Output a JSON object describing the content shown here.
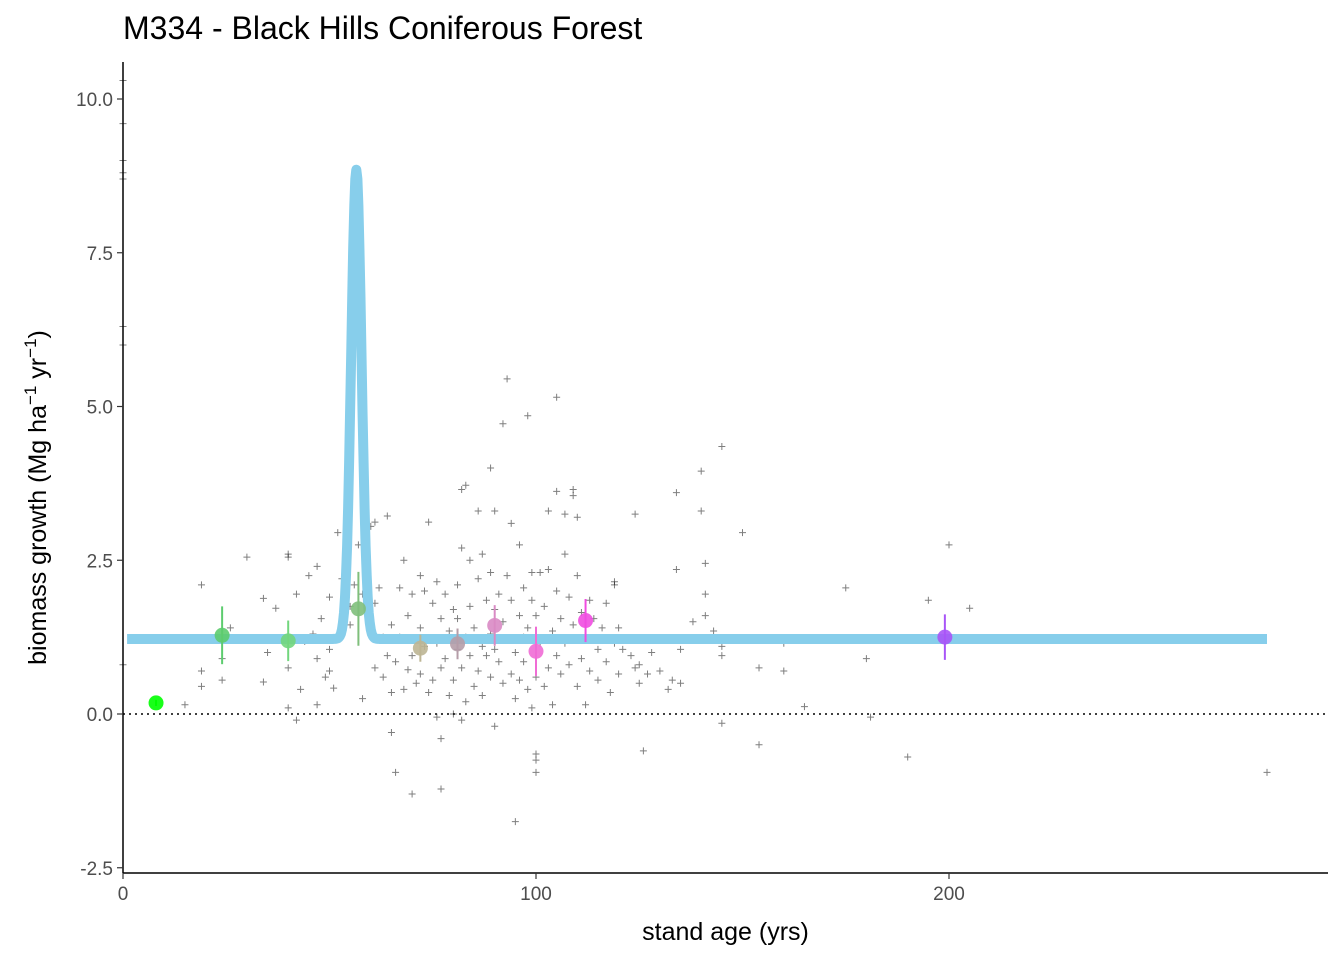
{
  "chart_data": {
    "type": "scatter",
    "title": "M334 - Black Hills Coniferous Forest",
    "xlabel": "stand age (yrs)",
    "ylabel": {
      "main": "biomass growth (Mg ha",
      "sup1": "−1",
      "mid": " yr",
      "sup2": "−1",
      "end": ")"
    },
    "xlim": [
      0,
      292
    ],
    "ylim": [
      -2.6,
      10.6
    ],
    "x_ticks": [
      0,
      100,
      200
    ],
    "x_tick_labels": [
      "0",
      "100",
      "200"
    ],
    "y_ticks": [
      -2.5,
      0.0,
      2.5,
      5.0,
      7.5,
      10.0
    ],
    "y_tick_labels": [
      "-2.5",
      "0.0",
      "2.5",
      "5.0",
      "7.5",
      "10.0"
    ],
    "reference_line": {
      "y": 0,
      "style": "dotted",
      "color": "#000000"
    },
    "grid": false,
    "fitted_curve": {
      "color": "#87CEEB",
      "baseline": 1.22,
      "peak_x": 56.5,
      "peak_y": 8.85,
      "x_range": [
        1,
        277
      ]
    },
    "group_means": [
      {
        "x": 8,
        "y": 0.18,
        "err": 0.05,
        "color": "#00FF00"
      },
      {
        "x": 24,
        "y": 1.28,
        "err": 0.47,
        "color": "#5DCC6E"
      },
      {
        "x": 40,
        "y": 1.19,
        "err": 0.33,
        "color": "#72D67D"
      },
      {
        "x": 57,
        "y": 1.71,
        "err": 0.6,
        "color": "#7FBF7B"
      },
      {
        "x": 72,
        "y": 1.07,
        "err": 0.22,
        "color": "#BDB594"
      },
      {
        "x": 81,
        "y": 1.14,
        "err": 0.25,
        "color": "#B59DA8"
      },
      {
        "x": 90,
        "y": 1.44,
        "err": 0.33,
        "color": "#D98AC4"
      },
      {
        "x": 100,
        "y": 1.02,
        "err": 0.4,
        "color": "#F06CD5"
      },
      {
        "x": 112,
        "y": 1.52,
        "err": 0.35,
        "color": "#F04CE0"
      },
      {
        "x": 199,
        "y": 1.25,
        "err": 0.37,
        "color": "#A855F7"
      }
    ],
    "observations": [
      [
        0,
        9.0
      ],
      [
        0,
        8.8
      ],
      [
        0,
        8.7
      ],
      [
        0,
        6.3
      ],
      [
        0,
        6.0
      ],
      [
        0,
        0.8
      ],
      [
        0,
        10.3
      ],
      [
        0,
        9.6
      ],
      [
        15,
        0.15
      ],
      [
        19,
        0.7
      ],
      [
        19,
        0.45
      ],
      [
        19,
        2.1
      ],
      [
        24,
        0.55
      ],
      [
        24,
        0.9
      ],
      [
        26,
        1.4
      ],
      [
        30,
        2.55
      ],
      [
        34,
        0.52
      ],
      [
        34,
        1.88
      ],
      [
        35,
        1.0
      ],
      [
        37,
        1.72
      ],
      [
        40,
        0.75
      ],
      [
        40,
        0.1
      ],
      [
        40,
        2.55
      ],
      [
        40,
        2.6
      ],
      [
        42,
        1.95
      ],
      [
        42,
        -0.1
      ],
      [
        43,
        0.4
      ],
      [
        44,
        1.18
      ],
      [
        45,
        2.25
      ],
      [
        46,
        1.3
      ],
      [
        47,
        0.9
      ],
      [
        47,
        2.4
      ],
      [
        47,
        0.15
      ],
      [
        48,
        1.55
      ],
      [
        49,
        0.6
      ],
      [
        50,
        1.05
      ],
      [
        50,
        1.9
      ],
      [
        50,
        0.7
      ],
      [
        51,
        0.42
      ],
      [
        52,
        2.95
      ],
      [
        53,
        2.2
      ],
      [
        53,
        1.38
      ],
      [
        54,
        2.35
      ],
      [
        55,
        1.75
      ],
      [
        55,
        1.45
      ],
      [
        56,
        2.1
      ],
      [
        57,
        2.75
      ],
      [
        58,
        0.25
      ],
      [
        58,
        1.95
      ],
      [
        59,
        2.2
      ],
      [
        60,
        3.05
      ],
      [
        61,
        0.75
      ],
      [
        61,
        3.12
      ],
      [
        61,
        1.8
      ],
      [
        62,
        2.05
      ],
      [
        63,
        0.6
      ],
      [
        63,
        1.25
      ],
      [
        64,
        0.95
      ],
      [
        64,
        3.22
      ],
      [
        65,
        1.45
      ],
      [
        65,
        0.35
      ],
      [
        65,
        -0.3
      ],
      [
        66,
        0.85
      ],
      [
        66,
        -0.95
      ],
      [
        67,
        1.25
      ],
      [
        67,
        2.05
      ],
      [
        68,
        2.5
      ],
      [
        68,
        0.4
      ],
      [
        69,
        1.6
      ],
      [
        69,
        0.72
      ],
      [
        70,
        -1.3
      ],
      [
        70,
        1.95
      ],
      [
        70,
        0.95
      ],
      [
        71,
        0.5
      ],
      [
        72,
        1.4
      ],
      [
        72,
        2.25
      ],
      [
        72,
        0.65
      ],
      [
        73,
        1.1
      ],
      [
        73,
        2.0
      ],
      [
        74,
        0.35
      ],
      [
        74,
        3.12
      ],
      [
        75,
        1.8
      ],
      [
        75,
        0.55
      ],
      [
        76,
        1.15
      ],
      [
        76,
        2.15
      ],
      [
        76,
        -0.05
      ],
      [
        77,
        0.75
      ],
      [
        77,
        -1.22
      ],
      [
        77,
        1.55
      ],
      [
        77,
        -0.4
      ],
      [
        78,
        0.9
      ],
      [
        78,
        1.95
      ],
      [
        79,
        0.3
      ],
      [
        79,
        1.35
      ],
      [
        80,
        1.7
      ],
      [
        80,
        0.55
      ],
      [
        80,
        0.0
      ],
      [
        81,
        1.05
      ],
      [
        81,
        1.55
      ],
      [
        81,
        2.1
      ],
      [
        82,
        3.65
      ],
      [
        82,
        2.7
      ],
      [
        82,
        0.75
      ],
      [
        82,
        -0.1
      ],
      [
        83,
        3.72
      ],
      [
        83,
        1.25
      ],
      [
        83,
        0.2
      ],
      [
        84,
        1.75
      ],
      [
        84,
        2.5
      ],
      [
        84,
        0.95
      ],
      [
        85,
        1.4
      ],
      [
        85,
        0.45
      ],
      [
        86,
        3.3
      ],
      [
        86,
        2.2
      ],
      [
        86,
        0.7
      ],
      [
        87,
        1.1
      ],
      [
        87,
        2.6
      ],
      [
        87,
        0.3
      ],
      [
        88,
        1.85
      ],
      [
        88,
        0.95
      ],
      [
        89,
        4.0
      ],
      [
        89,
        2.3
      ],
      [
        89,
        1.3
      ],
      [
        89,
        0.6
      ],
      [
        90,
        3.3
      ],
      [
        90,
        1.7
      ],
      [
        90,
        1.05
      ],
      [
        90,
        -0.2
      ],
      [
        91,
        1.95
      ],
      [
        91,
        0.85
      ],
      [
        92,
        4.72
      ],
      [
        92,
        1.5
      ],
      [
        92,
        0.5
      ],
      [
        93,
        5.45
      ],
      [
        93,
        2.25
      ],
      [
        93,
        1.2
      ],
      [
        94,
        0.65
      ],
      [
        94,
        1.85
      ],
      [
        94,
        3.1
      ],
      [
        95,
        -1.75
      ],
      [
        95,
        1.0
      ],
      [
        95,
        0.25
      ],
      [
        96,
        1.6
      ],
      [
        96,
        2.75
      ],
      [
        96,
        0.55
      ],
      [
        97,
        1.25
      ],
      [
        97,
        0.85
      ],
      [
        97,
        2.05
      ],
      [
        98,
        4.85
      ],
      [
        98,
        1.4
      ],
      [
        98,
        0.4
      ],
      [
        99,
        2.3
      ],
      [
        99,
        1.85
      ],
      [
        99,
        0.1
      ],
      [
        100,
        -0.65
      ],
      [
        100,
        -0.75
      ],
      [
        100,
        -0.95
      ],
      [
        100,
        1.6
      ],
      [
        100,
        0.6
      ],
      [
        101,
        2.3
      ],
      [
        101,
        1.15
      ],
      [
        102,
        1.75
      ],
      [
        102,
        0.45
      ],
      [
        103,
        2.35
      ],
      [
        103,
        3.3
      ],
      [
        103,
        0.75
      ],
      [
        104,
        1.35
      ],
      [
        104,
        0.15
      ],
      [
        105,
        5.15
      ],
      [
        105,
        3.62
      ],
      [
        105,
        2.0
      ],
      [
        105,
        0.95
      ],
      [
        106,
        1.55
      ],
      [
        106,
        0.65
      ],
      [
        107,
        2.6
      ],
      [
        107,
        1.15
      ],
      [
        107,
        3.25
      ],
      [
        108,
        0.8
      ],
      [
        108,
        1.9
      ],
      [
        109,
        3.55
      ],
      [
        109,
        3.65
      ],
      [
        109,
        1.45
      ],
      [
        110,
        0.45
      ],
      [
        110,
        2.25
      ],
      [
        110,
        3.2
      ],
      [
        111,
        1.65
      ],
      [
        111,
        0.9
      ],
      [
        112,
        1.25
      ],
      [
        112,
        0.15
      ],
      [
        113,
        1.85
      ],
      [
        113,
        0.7
      ],
      [
        114,
        1.55
      ],
      [
        115,
        1.05
      ],
      [
        115,
        0.55
      ],
      [
        116,
        1.4
      ],
      [
        117,
        0.85
      ],
      [
        117,
        1.8
      ],
      [
        118,
        0.35
      ],
      [
        119,
        1.15
      ],
      [
        119,
        2.1
      ],
      [
        119,
        2.15
      ],
      [
        120,
        0.65
      ],
      [
        120,
        1.4
      ],
      [
        121,
        1.05
      ],
      [
        123,
        0.95
      ],
      [
        124,
        3.25
      ],
      [
        124,
        0.75
      ],
      [
        125,
        0.8
      ],
      [
        125,
        0.5
      ],
      [
        126,
        -0.6
      ],
      [
        127,
        0.65
      ],
      [
        128,
        1.0
      ],
      [
        130,
        0.7
      ],
      [
        132,
        0.4
      ],
      [
        133,
        0.55
      ],
      [
        134,
        3.6
      ],
      [
        134,
        2.35
      ],
      [
        135,
        0.5
      ],
      [
        135,
        1.05
      ],
      [
        138,
        1.5
      ],
      [
        140,
        3.95
      ],
      [
        140,
        3.3
      ],
      [
        141,
        2.45
      ],
      [
        141,
        1.95
      ],
      [
        141,
        1.6
      ],
      [
        143,
        1.35
      ],
      [
        145,
        4.35
      ],
      [
        145,
        1.1
      ],
      [
        145,
        0.95
      ],
      [
        145,
        -0.15
      ],
      [
        150,
        2.95
      ],
      [
        154,
        0.75
      ],
      [
        154,
        -0.5
      ],
      [
        160,
        0.7
      ],
      [
        160,
        1.15
      ],
      [
        165,
        0.12
      ],
      [
        175,
        2.05
      ],
      [
        180,
        0.9
      ],
      [
        181,
        -0.05
      ],
      [
        190,
        -0.7
      ],
      [
        195,
        1.85
      ],
      [
        200,
        2.75
      ],
      [
        205,
        1.72
      ],
      [
        277,
        -0.95
      ]
    ]
  }
}
